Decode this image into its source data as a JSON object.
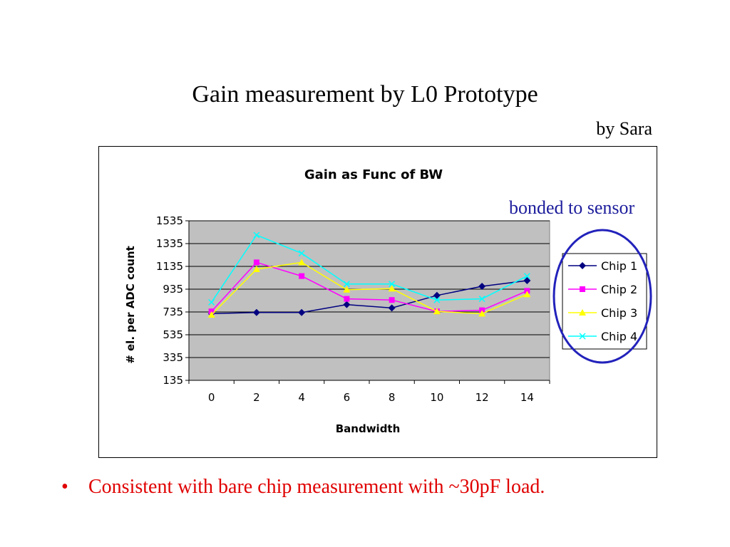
{
  "slide": {
    "title": "Gain measurement by L0 Prototype",
    "author": "by Sara",
    "annotation": "bonded to sensor",
    "bullet_marker": "•",
    "bullet_text": "Consistent with bare chip measurement with ~30pF load."
  },
  "chart_data": {
    "type": "line",
    "title": "Gain as Func of BW",
    "xlabel": "Bandwidth",
    "ylabel": "# el. per ADC count",
    "categories": [
      "0",
      "2",
      "4",
      "6",
      "8",
      "10",
      "12",
      "14"
    ],
    "yticks": [
      1535,
      1335,
      1135,
      935,
      735,
      535,
      335,
      135
    ],
    "ylim": [
      135,
      1535
    ],
    "grid": true,
    "legend": "right",
    "plot_bg": "#c0c0c0",
    "series": [
      {
        "name": "Chip 1",
        "color": "#000080",
        "marker": "diamond",
        "values": [
          720,
          730,
          730,
          800,
          770,
          880,
          960,
          1010
        ]
      },
      {
        "name": "Chip 2",
        "color": "#ff00ff",
        "marker": "square",
        "values": [
          740,
          1170,
          1050,
          850,
          840,
          740,
          750,
          920
        ]
      },
      {
        "name": "Chip 3",
        "color": "#ffff00",
        "marker": "triangle",
        "values": [
          710,
          1110,
          1170,
          930,
          940,
          740,
          720,
          890
        ]
      },
      {
        "name": "Chip 4",
        "color": "#00ffff",
        "marker": "x",
        "values": [
          820,
          1410,
          1250,
          980,
          980,
          840,
          850,
          1050
        ]
      }
    ],
    "highlight_color": "#2222bb"
  }
}
